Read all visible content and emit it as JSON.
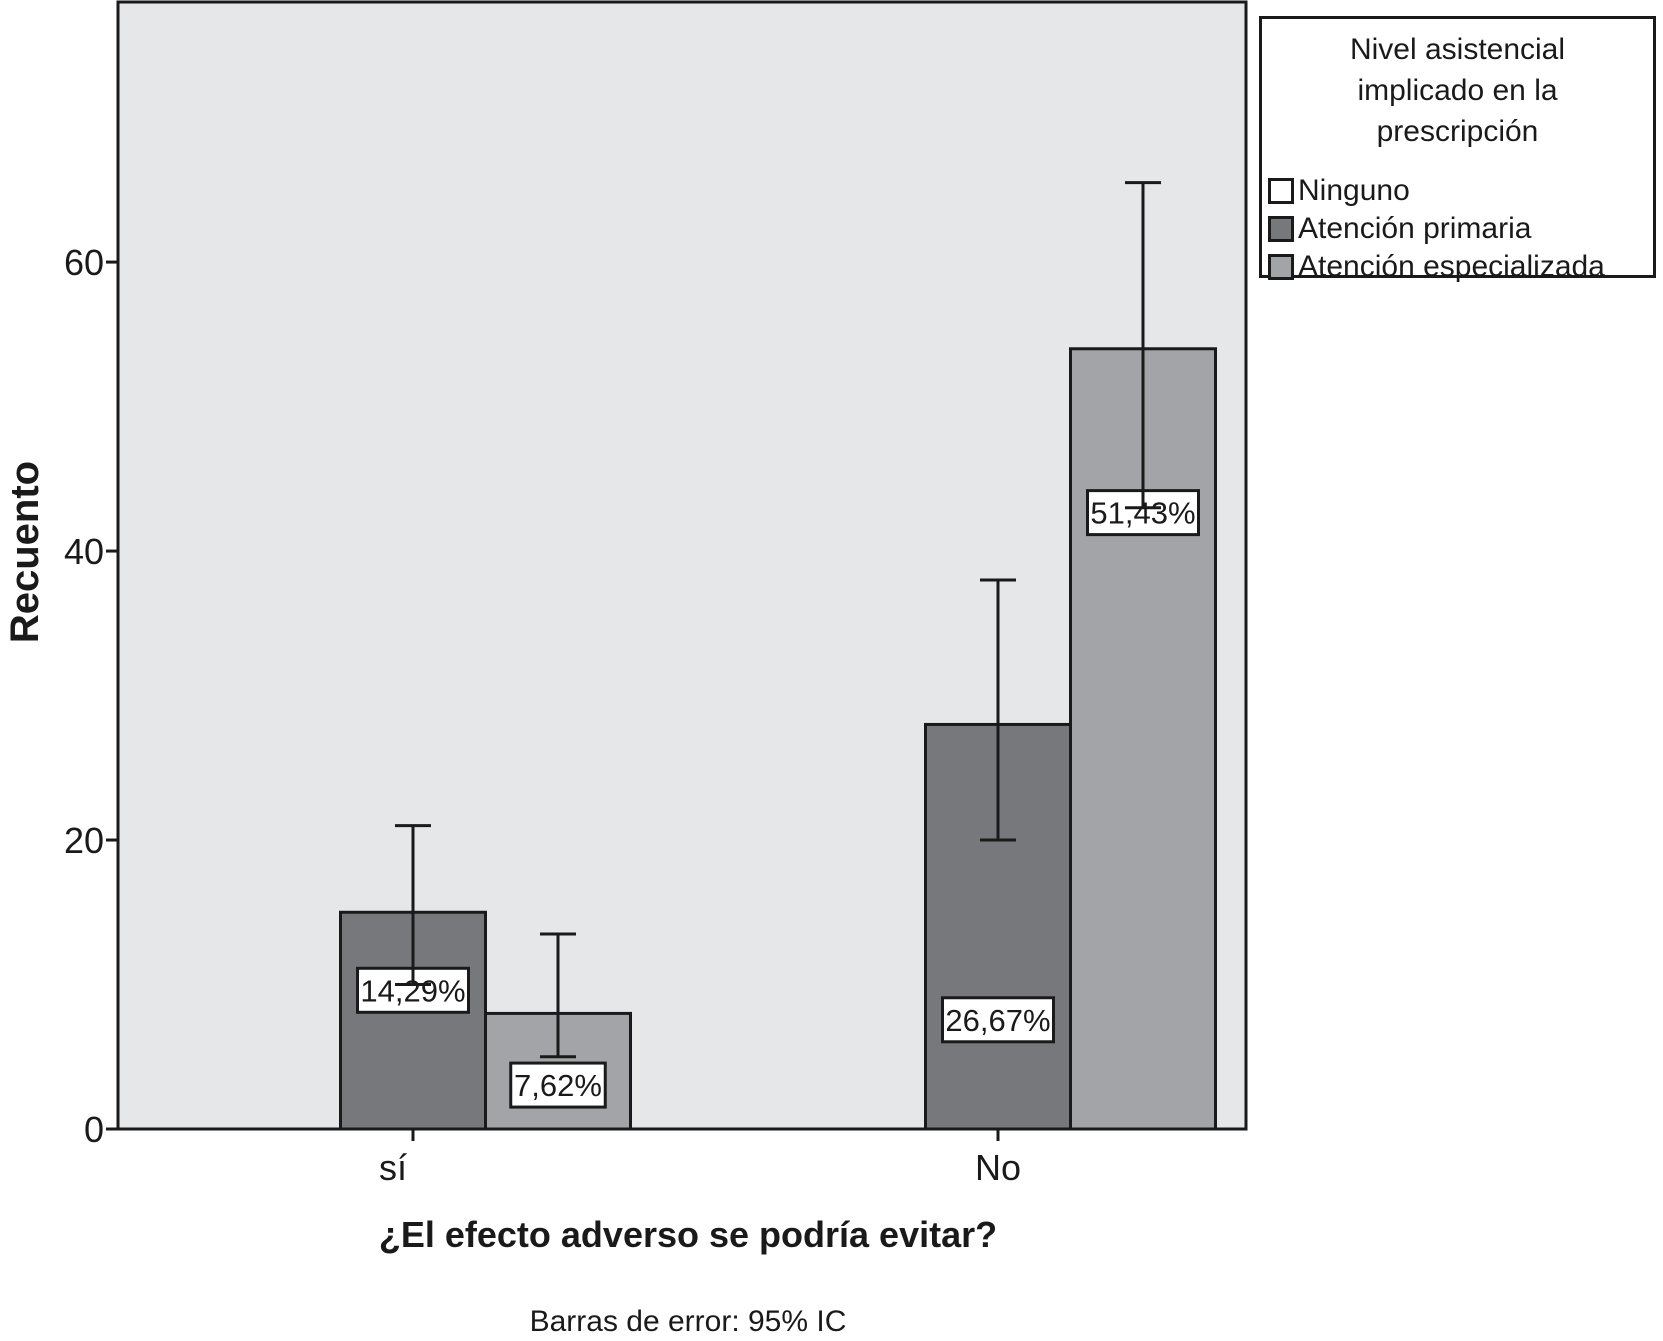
{
  "chart_data": {
    "type": "bar",
    "categories": [
      "sí",
      "No"
    ],
    "xlabel": "¿El efecto adverso se podría evitar?",
    "ylabel": "Recuento",
    "ylim": [
      0,
      78
    ],
    "yticks": [
      0,
      20,
      40,
      60
    ],
    "grid": false,
    "legend_position": "right",
    "footnote": "Barras de error: 95% IC",
    "legend": {
      "title": "Nivel asistencial\nimplicado en la\nprescripción",
      "items": [
        {
          "label": "Ninguno",
          "color": "#ffffff"
        },
        {
          "label": "Atención primaria",
          "color": "#76787c"
        },
        {
          "label": "Atención especializada",
          "color": "#a3a4a8"
        }
      ]
    },
    "series": [
      {
        "name": "Ninguno",
        "color": "#ffffff",
        "values": [
          0,
          0
        ],
        "ci": [
          null,
          null
        ],
        "data_labels": [
          "",
          ""
        ]
      },
      {
        "name": "Atención primaria",
        "color": "#76787c",
        "values": [
          15,
          28
        ],
        "ci": [
          [
            10,
            21
          ],
          [
            20,
            38
          ]
        ],
        "data_labels": [
          "14,29%",
          "26,67%"
        ]
      },
      {
        "name": "Atención especializada",
        "color": "#a3a4a8",
        "values": [
          8,
          54
        ],
        "ci": [
          [
            5,
            13.5
          ],
          [
            43,
            65.5
          ]
        ],
        "data_labels": [
          "7,62%",
          "51,43%"
        ]
      }
    ],
    "colors": {
      "plot_background": "#e6e7e9",
      "axis": "#1a1a1a"
    }
  }
}
